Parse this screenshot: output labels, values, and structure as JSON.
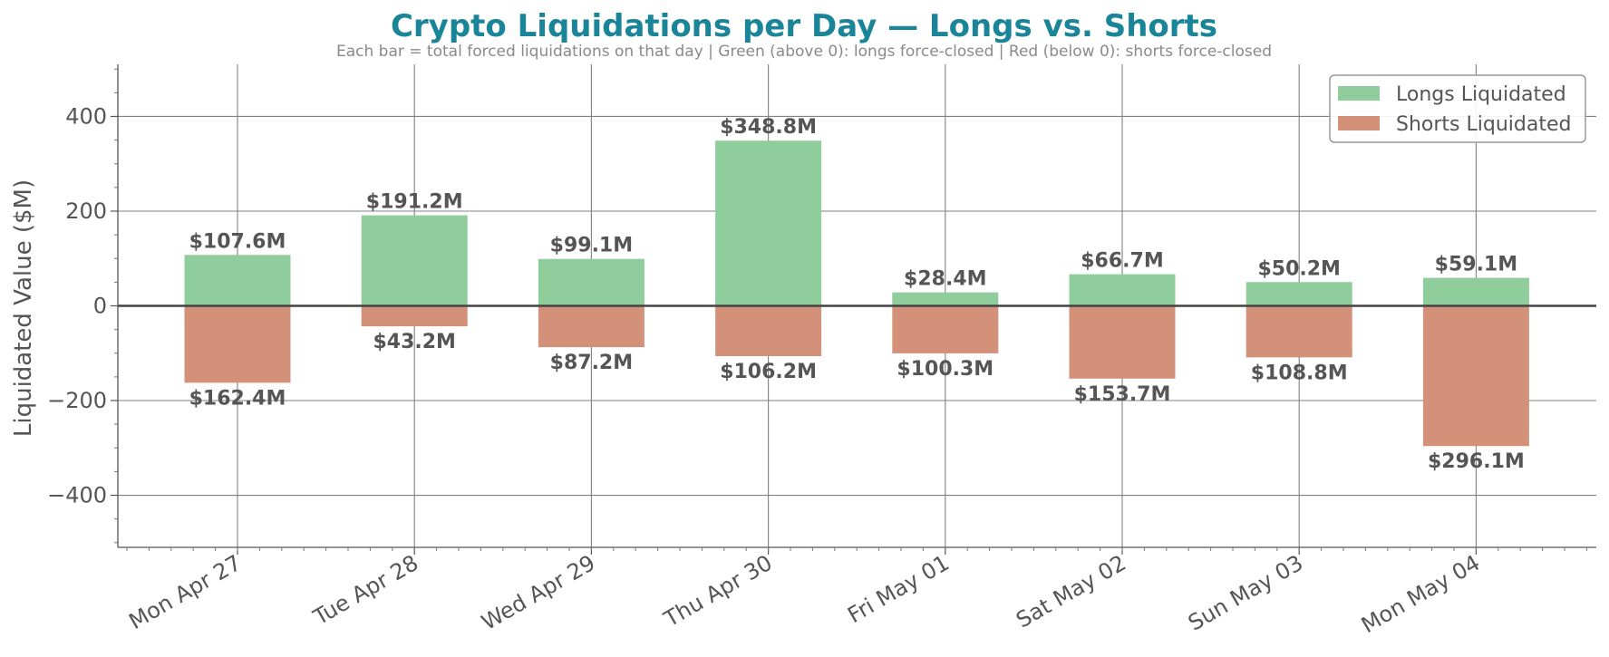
{
  "chart_data": {
    "type": "bar",
    "title": "Crypto Liquidations per Day — Longs vs. Shorts",
    "subtitle": "Each bar = total forced liquidations on that day  |  Green (above 0): longs force-closed  |  Red (below 0): shorts force-closed",
    "xlabel": "",
    "ylabel": "Liquidated Value ($M)",
    "ylim": [
      -510,
      510
    ],
    "yticks": [
      -400,
      -200,
      0,
      200,
      400
    ],
    "ytick_labels": [
      "−400",
      "−200",
      "0",
      "200",
      "400"
    ],
    "categories": [
      "Mon Apr 27",
      "Tue Apr 28",
      "Wed Apr 29",
      "Thu Apr 30",
      "Fri May 01",
      "Sat May 02",
      "Sun May 03",
      "Mon May 04"
    ],
    "series": [
      {
        "name": "Longs Liquidated",
        "color": "#90cd9d",
        "values": [
          107.6,
          191.2,
          99.1,
          348.8,
          28.4,
          66.7,
          50.2,
          59.1
        ],
        "labels": [
          "$107.6M",
          "$191.2M",
          "$99.1M",
          "$348.8M",
          "$28.4M",
          "$66.7M",
          "$50.2M",
          "$59.1M"
        ]
      },
      {
        "name": "Shorts Liquidated",
        "color": "#d4917a",
        "values": [
          -162.4,
          -43.2,
          -87.2,
          -106.2,
          -100.3,
          -153.7,
          -108.8,
          -296.1
        ],
        "labels": [
          "$162.4M",
          "$43.2M",
          "$87.2M",
          "$106.2M",
          "$100.3M",
          "$153.7M",
          "$108.8M",
          "$296.1M"
        ]
      }
    ],
    "grid": true,
    "legend_position": "top-right"
  }
}
